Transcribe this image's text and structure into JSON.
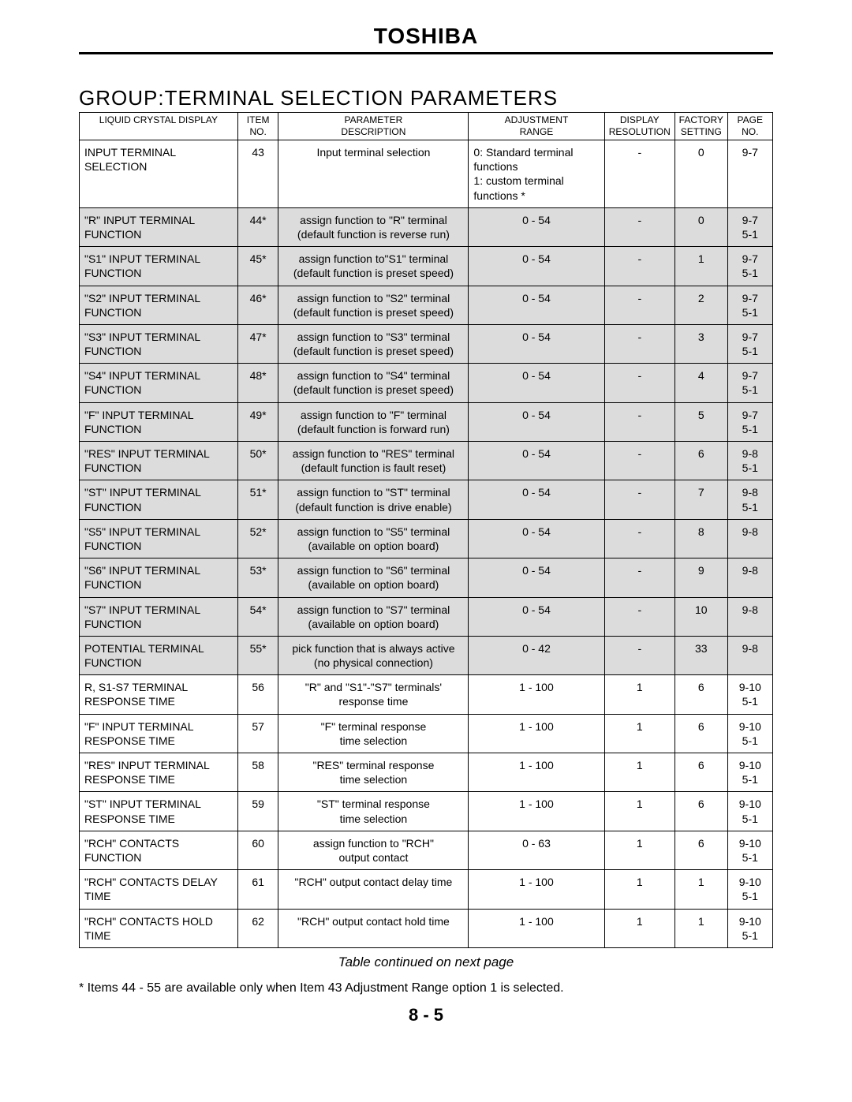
{
  "brand": "TOSHIBA",
  "section_title": "GROUP:TERMINAL SELECTION PARAMETERS",
  "continued_text": "Table continued on next page",
  "footnote": "* Items 44 - 55 are available only when Item 43 Adjustment Range option 1 is selected.",
  "page_number": "8 - 5",
  "headers": {
    "lcd": "LIQUID CRYSTAL DISPLAY",
    "item": "ITEM\nNO.",
    "desc": "PARAMETER\nDESCRIPTION",
    "range": "ADJUSTMENT\nRANGE",
    "res": "DISPLAY\nRESOLUTION",
    "fact": "FACTORY\nSETTING",
    "page": "PAGE\nNO."
  },
  "rows": [
    {
      "shaded": false,
      "lcd": "INPUT TERMINAL SELECTION",
      "item": "43",
      "desc": "Input terminal selection",
      "range": "0: Standard terminal\n     functions\n1: custom terminal\n     functions *",
      "range_align": "left",
      "res": "-",
      "fact": "0",
      "page": "9-7"
    },
    {
      "shaded": true,
      "lcd": "\"R\" INPUT TERMINAL FUNCTION",
      "item": "44*",
      "desc": "assign function to \"R\" terminal\n(default function is reverse run)",
      "range": "0 - 54",
      "range_align": "center",
      "res": "-",
      "fact": "0",
      "page": "9-7\n5-1"
    },
    {
      "shaded": true,
      "lcd": "\"S1\" INPUT TERMINAL FUNCTION",
      "item": "45*",
      "desc": "assign function to\"S1\" terminal\n(default function is preset speed)",
      "range": "0 - 54",
      "range_align": "center",
      "res": "-",
      "fact": "1",
      "page": "9-7\n5-1"
    },
    {
      "shaded": true,
      "lcd": "\"S2\" INPUT TERMINAL FUNCTION",
      "item": "46*",
      "desc": "assign function to \"S2\" terminal\n(default function is preset speed)",
      "range": "0 - 54",
      "range_align": "center",
      "res": "-",
      "fact": "2",
      "page": "9-7\n5-1"
    },
    {
      "shaded": true,
      "lcd": "\"S3\" INPUT TERMINAL FUNCTION",
      "item": "47*",
      "desc": "assign function to \"S3\" terminal\n(default function is preset speed)",
      "range": "0 - 54",
      "range_align": "center",
      "res": "-",
      "fact": "3",
      "page": "9-7\n5-1"
    },
    {
      "shaded": true,
      "lcd": "\"S4\" INPUT TERMINAL FUNCTION",
      "item": "48*",
      "desc": "assign function to \"S4\" terminal\n(default function is preset speed)",
      "range": "0 - 54",
      "range_align": "center",
      "res": "-",
      "fact": "4",
      "page": "9-7\n5-1"
    },
    {
      "shaded": true,
      "lcd": "\"F\" INPUT TERMINAL FUNCTION",
      "item": "49*",
      "desc": "assign function to \"F\" terminal\n(default function is forward run)",
      "range": "0 - 54",
      "range_align": "center",
      "res": "-",
      "fact": "5",
      "page": "9-7\n5-1"
    },
    {
      "shaded": true,
      "lcd": "\"RES\" INPUT TERMINAL FUNCTION",
      "item": "50*",
      "desc": "assign function to \"RES\" terminal\n(default function is fault reset)",
      "range": "0 - 54",
      "range_align": "center",
      "res": "-",
      "fact": "6",
      "page": "9-8\n5-1"
    },
    {
      "shaded": true,
      "lcd": "\"ST\" INPUT TERMINAL FUNCTION",
      "item": "51*",
      "desc": "assign function to \"ST\" terminal\n(default function is drive enable)",
      "range": "0 - 54",
      "range_align": "center",
      "res": "-",
      "fact": "7",
      "page": "9-8\n5-1"
    },
    {
      "shaded": true,
      "lcd": "\"S5\" INPUT TERMINAL FUNCTION",
      "item": "52*",
      "desc": "assign function to \"S5\" terminal\n(available on option board)",
      "range": "0 - 54",
      "range_align": "center",
      "res": "-",
      "fact": "8",
      "page": "9-8"
    },
    {
      "shaded": true,
      "lcd": "\"S6\" INPUT TERMINAL FUNCTION",
      "item": "53*",
      "desc": "assign function to \"S6\" terminal\n(available on option board)",
      "range": "0 - 54",
      "range_align": "center",
      "res": "-",
      "fact": "9",
      "page": "9-8"
    },
    {
      "shaded": true,
      "lcd": "\"S7\" INPUT TERMINAL FUNCTION",
      "item": "54*",
      "desc": "assign function to \"S7\" terminal\n(available on option board)",
      "range": "0 - 54",
      "range_align": "center",
      "res": "-",
      "fact": "10",
      "page": "9-8"
    },
    {
      "shaded": true,
      "lcd": "POTENTIAL TERMINAL FUNCTION",
      "item": "55*",
      "desc": "pick function that is always active\n(no physical connection)",
      "range": "0 - 42",
      "range_align": "center",
      "res": "-",
      "fact": "33",
      "page": "9-8"
    },
    {
      "shaded": false,
      "lcd": "R, S1-S7 TERMINAL RESPONSE TIME",
      "item": "56",
      "desc": "\"R\" and \"S1\"-\"S7\" terminals'\nresponse time",
      "range": "1 - 100",
      "range_align": "center",
      "res": "1",
      "fact": "6",
      "page": "9-10\n5-1"
    },
    {
      "shaded": false,
      "lcd": "\"F\" INPUT TERMINAL RESPONSE TIME",
      "item": "57",
      "desc": "\"F\" terminal response\ntime selection",
      "range": "1 - 100",
      "range_align": "center",
      "res": "1",
      "fact": "6",
      "page": "9-10\n5-1"
    },
    {
      "shaded": false,
      "lcd": "\"RES\" INPUT TERMINAL RESPONSE TIME",
      "item": "58",
      "desc": "\"RES\" terminal response\ntime selection",
      "range": "1 - 100",
      "range_align": "center",
      "res": "1",
      "fact": "6",
      "page": "9-10\n5-1"
    },
    {
      "shaded": false,
      "lcd": "\"ST\" INPUT TERMINAL RESPONSE TIME",
      "item": "59",
      "desc": "\"ST\" terminal response\ntime selection",
      "range": "1 - 100",
      "range_align": "center",
      "res": "1",
      "fact": "6",
      "page": "9-10\n5-1"
    },
    {
      "shaded": false,
      "lcd": "\"RCH\" CONTACTS FUNCTION",
      "item": "60",
      "desc": "assign function to \"RCH\"\noutput contact",
      "range": "0 - 63",
      "range_align": "center",
      "res": "1",
      "fact": "6",
      "page": "9-10\n5-1"
    },
    {
      "shaded": false,
      "lcd": "\"RCH\" CONTACTS DELAY TIME",
      "item": "61",
      "desc": "\"RCH\" output contact delay time",
      "range": "1 - 100",
      "range_align": "center",
      "res": "1",
      "fact": "1",
      "page": "9-10\n5-1"
    },
    {
      "shaded": false,
      "lcd": "\"RCH\" CONTACTS HOLD TIME",
      "item": "62",
      "desc": "\"RCH\" output contact hold time",
      "range": "1 - 100",
      "range_align": "center",
      "res": "1",
      "fact": "1",
      "page": "9-10\n5-1"
    }
  ]
}
